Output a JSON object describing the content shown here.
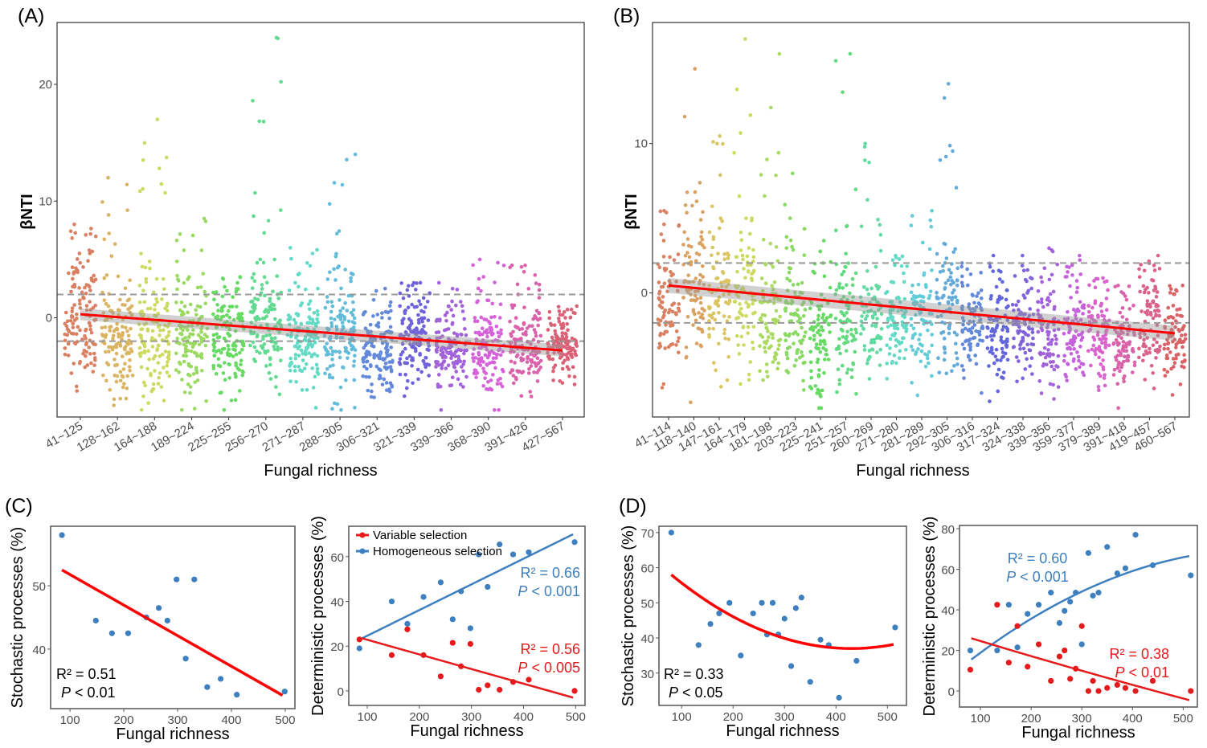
{
  "panel_labels": [
    "(A)",
    "(B)",
    "(C)",
    "(D)"
  ],
  "chart_data": [
    {
      "id": "A",
      "type": "scatter",
      "subtype": "jittered strip",
      "xlabel": "Fungal richness",
      "ylabel": "βNTI",
      "ylim": [
        -8.5,
        25.3
      ],
      "yticks": [
        0,
        10,
        20
      ],
      "reference_lines": [
        -2,
        2
      ],
      "categories": [
        "41~125",
        "128~162",
        "164~188",
        "189~224",
        "225~255",
        "256~270",
        "271~287",
        "288~305",
        "306~321",
        "321~339",
        "339~366",
        "368~390",
        "391~426",
        "427~567"
      ],
      "groups": [
        {
          "mean": 0,
          "sd": 2.6,
          "max": 8
        },
        {
          "mean": -2,
          "sd": 2.4,
          "max": 12
        },
        {
          "mean": -1,
          "sd": 2.6,
          "max": 17
        },
        {
          "mean": -2,
          "sd": 2.4,
          "max": 8.5
        },
        {
          "mean": -2,
          "sd": 2,
          "max": 3.5
        },
        {
          "mean": -1,
          "sd": 2.4,
          "max": 24
        },
        {
          "mean": -2,
          "sd": 2,
          "max": 6
        },
        {
          "mean": -1,
          "sd": 2.3,
          "max": 14
        },
        {
          "mean": -3,
          "sd": 1.7,
          "max": 2.5
        },
        {
          "mean": -2,
          "sd": 1.8,
          "max": 3
        },
        {
          "mean": -3,
          "sd": 1.7,
          "max": 3
        },
        {
          "mean": -3,
          "sd": 1.8,
          "max": 5
        },
        {
          "mean": -2.5,
          "sd": 1.8,
          "max": 4.5
        },
        {
          "mean": -2.5,
          "sd": 1.2,
          "max": 1
        }
      ],
      "points_per_group": 130,
      "regression": {
        "from": [
          1,
          0.3
        ],
        "to": [
          14,
          -2.8
        ],
        "color": "#ff0000"
      }
    },
    {
      "id": "B",
      "type": "scatter",
      "subtype": "jittered strip",
      "xlabel": "Fungal richness",
      "ylabel": "βNTI",
      "ylim": [
        -8.3,
        18.1
      ],
      "yticks": [
        0,
        10
      ],
      "reference_lines": [
        -2,
        2
      ],
      "categories": [
        "41~114",
        "118~140",
        "147~161",
        "164~179",
        "181~198",
        "203~223",
        "225~241",
        "251~257",
        "260~269",
        "271~280",
        "281~289",
        "292~305",
        "306~316",
        "317~324",
        "324~338",
        "339~356",
        "359~377",
        "379~389",
        "391~418",
        "419~457",
        "460~567"
      ],
      "groups": [
        {
          "mean": -1,
          "sd": 2.2,
          "max": 5.5
        },
        {
          "mean": 0.5,
          "sd": 2.6,
          "max": 15
        },
        {
          "mean": -1,
          "sd": 2.4,
          "max": 10.5
        },
        {
          "mean": -1,
          "sd": 2.4,
          "max": 17
        },
        {
          "mean": -1.5,
          "sd": 2.3,
          "max": 16
        },
        {
          "mean": -2,
          "sd": 2.3,
          "max": 8
        },
        {
          "mean": -3,
          "sd": 2,
          "max": 3.5
        },
        {
          "mean": -2,
          "sd": 2.2,
          "max": 16
        },
        {
          "mean": -1,
          "sd": 2.2,
          "max": 10
        },
        {
          "mean": -2,
          "sd": 1.8,
          "max": 2.5
        },
        {
          "mean": -2,
          "sd": 2,
          "max": 5.5
        },
        {
          "mean": -1,
          "sd": 2.3,
          "max": 14
        },
        {
          "mean": -2.5,
          "sd": 1.5,
          "max": 2
        },
        {
          "mean": -2.5,
          "sd": 1.6,
          "max": 2.5
        },
        {
          "mean": -2.5,
          "sd": 1.6,
          "max": 2.5
        },
        {
          "mean": -3,
          "sd": 1.7,
          "max": 3
        },
        {
          "mean": -2.5,
          "sd": 1.5,
          "max": 2.5
        },
        {
          "mean": -3,
          "sd": 1.6,
          "max": 1
        },
        {
          "mean": -3.5,
          "sd": 1.5,
          "max": 0.5
        },
        {
          "mean": -2,
          "sd": 1.7,
          "max": 2.5
        },
        {
          "mean": -3,
          "sd": 1.3,
          "max": 0.5
        }
      ],
      "points_per_group": 85,
      "regression": {
        "from": [
          1,
          0.5
        ],
        "to": [
          21,
          -2.7
        ],
        "color": "#ff0000"
      }
    },
    {
      "id": "C-left",
      "type": "scatter",
      "xlabel": "Fungal richness",
      "ylabel": "Stochastic processes (%)",
      "xlim": [
        64,
        518
      ],
      "ylim": [
        30.6,
        59.4
      ],
      "xticks": [
        100,
        200,
        300,
        400,
        500
      ],
      "yticks": [
        40,
        50
      ],
      "series": [
        {
          "name": "Stochastic",
          "color": "#3d7fbf",
          "points": [
            [
              85,
              58
            ],
            [
              148,
              44.5
            ],
            [
              178,
              42.5
            ],
            [
              208,
              42.5
            ],
            [
              242,
              45
            ],
            [
              265,
              46.5
            ],
            [
              281,
              44.5
            ],
            [
              298,
              51
            ],
            [
              315,
              38.5
            ],
            [
              331,
              51
            ],
            [
              355,
              34
            ],
            [
              380,
              35.3
            ],
            [
              410,
              32.8
            ],
            [
              499,
              33.3
            ]
          ],
          "fit": {
            "type": "linear",
            "from": [
              85,
              52.5
            ],
            "to": [
              495,
              32.7
            ],
            "color": "#ff0000"
          }
        }
      ],
      "annotations": [
        {
          "r2": "R² = 0.51",
          "p_italic": "P",
          "p_text": " < 0.01",
          "color": "#000000"
        }
      ]
    },
    {
      "id": "C-right",
      "type": "scatter",
      "xlabel": "Fungal richness",
      "ylabel": "Deterministic processes (%)",
      "xlim": [
        64.5,
        518
      ],
      "ylim": [
        -6.5,
        73.6
      ],
      "xticks": [
        100,
        200,
        300,
        400,
        500
      ],
      "yticks": [
        0,
        20,
        40,
        60
      ],
      "legend": {
        "position": "top-left",
        "entries": [
          "Variable selection",
          "Homogeneous selection"
        ]
      },
      "series": [
        {
          "name": "Homogeneous selection",
          "color": "#3d7fbf",
          "points": [
            [
              85,
              19
            ],
            [
              147,
              40
            ],
            [
              177,
              30
            ],
            [
              208,
              42
            ],
            [
              241,
              48.5
            ],
            [
              264,
              32
            ],
            [
              280,
              44.5
            ],
            [
              298,
              28
            ],
            [
              314,
              61
            ],
            [
              331,
              46.5
            ],
            [
              354,
              65.5
            ],
            [
              380,
              61
            ],
            [
              410,
              62
            ],
            [
              498,
              66.5
            ]
          ],
          "fit": {
            "type": "linear",
            "from": [
              90,
              23.5
            ],
            "to": [
              495,
              70
            ]
          }
        },
        {
          "name": "Variable selection",
          "color": "#e41a1c",
          "points": [
            [
              85,
              23
            ],
            [
              147,
              16
            ],
            [
              177,
              27.5
            ],
            [
              208,
              16
            ],
            [
              241,
              6.5
            ],
            [
              264,
              21.5
            ],
            [
              280,
              11
            ],
            [
              298,
              21
            ],
            [
              314,
              0.5
            ],
            [
              331,
              2.5
            ],
            [
              354,
              0.5
            ],
            [
              380,
              4
            ],
            [
              410,
              5
            ],
            [
              498,
              0
            ]
          ],
          "fit": {
            "type": "linear",
            "from": [
              90,
              23.5
            ],
            "to": [
              495,
              -3
            ]
          }
        }
      ],
      "annotations": [
        {
          "r2": "R² = 0.66",
          "p_italic": "P",
          "p_text": " < 0.001",
          "color": "#3d7fbf"
        },
        {
          "r2": "R² = 0.56",
          "p_italic": "P",
          "p_text": " < 0.005",
          "color": "#e41a1c"
        }
      ]
    },
    {
      "id": "D-left",
      "type": "scatter",
      "xlabel": "Fungal richness",
      "ylabel": "Stochastic processes (%)",
      "xlim": [
        56,
        537
      ],
      "ylim": [
        20.8,
        71.8
      ],
      "xticks": [
        100,
        200,
        300,
        400,
        500
      ],
      "yticks": [
        30,
        40,
        50,
        60,
        70
      ],
      "series": [
        {
          "name": "Stochastic",
          "color": "#3d7fbf",
          "points": [
            [
              80,
              70
            ],
            [
              133,
              38
            ],
            [
              156,
              44
            ],
            [
              173,
              47
            ],
            [
              193,
              50
            ],
            [
              215,
              35
            ],
            [
              239,
              47
            ],
            [
              256,
              50
            ],
            [
              266,
              41
            ],
            [
              277,
              50
            ],
            [
              288,
              41
            ],
            [
              300,
              45.5
            ],
            [
              313,
              32
            ],
            [
              322,
              48.5
            ],
            [
              333,
              51.5
            ],
            [
              350,
              27.5
            ],
            [
              370,
              39.5
            ],
            [
              386,
              38
            ],
            [
              406,
              23
            ],
            [
              440,
              33.5
            ],
            [
              515,
              43
            ]
          ],
          "fit": {
            "type": "quadratic",
            "coef": [
              0.0001714,
              -0.1474,
              68.69
            ],
            "range": [
              80,
              512
            ],
            "color": "#ff0000"
          }
        }
      ],
      "annotations": [
        {
          "r2": "R² = 0.33",
          "p_italic": "P",
          "p_text": " < 0.05",
          "color": "#000000"
        }
      ]
    },
    {
      "id": "D-right",
      "type": "scatter",
      "xlabel": "Fungal richness",
      "ylabel": "Deterministic processes (%)",
      "xlim": [
        58.7,
        528
      ],
      "ylim": [
        -7.9,
        81.6
      ],
      "xticks": [
        100,
        200,
        300,
        400,
        500
      ],
      "yticks": [
        0,
        20,
        40,
        60,
        80
      ],
      "series": [
        {
          "name": "Homogeneous selection",
          "color": "#3d7fbf",
          "points": [
            [
              80,
              20
            ],
            [
              133,
              20
            ],
            [
              156,
              42.5
            ],
            [
              173,
              21.5
            ],
            [
              193,
              38
            ],
            [
              215,
              42.5
            ],
            [
              239,
              48.5
            ],
            [
              256,
              33.5
            ],
            [
              266,
              39.5
            ],
            [
              277,
              44
            ],
            [
              288,
              48.5
            ],
            [
              300,
              23
            ],
            [
              313,
              68
            ],
            [
              322,
              47
            ],
            [
              333,
              48.5
            ],
            [
              350,
              71
            ],
            [
              370,
              58
            ],
            [
              386,
              60.5
            ],
            [
              406,
              77
            ],
            [
              440,
              62
            ],
            [
              515,
              57
            ]
          ],
          "fit": {
            "type": "quadratic",
            "coef": [
              -0.0001656,
              0.217,
              -1.19
            ],
            "range": [
              82,
              512
            ]
          }
        },
        {
          "name": "Variable selection",
          "color": "#e41a1c",
          "points": [
            [
              80,
              10.5
            ],
            [
              133,
              42.5
            ],
            [
              156,
              14
            ],
            [
              173,
              32
            ],
            [
              193,
              12
            ],
            [
              215,
              23
            ],
            [
              239,
              5
            ],
            [
              256,
              17
            ],
            [
              266,
              20
            ],
            [
              277,
              6
            ],
            [
              288,
              11
            ],
            [
              300,
              32
            ],
            [
              313,
              0
            ],
            [
              322,
              5
            ],
            [
              333,
              0
            ],
            [
              350,
              1.5
            ],
            [
              370,
              3
            ],
            [
              386,
              1.5
            ],
            [
              406,
              0
            ],
            [
              440,
              5
            ],
            [
              515,
              0
            ]
          ],
          "fit": {
            "type": "quadratic",
            "coef": [
              1.16e-05,
              -0.0778,
              32.3
            ],
            "range": [
              82,
              512
            ]
          }
        }
      ],
      "annotations": [
        {
          "r2": "R² = 0.60",
          "p_italic": "P",
          "p_text": " < 0.001",
          "color": "#3d7fbf"
        },
        {
          "r2": "R² = 0.38",
          "p_italic": "P",
          "p_text": " < 0.01",
          "color": "#e41a1c"
        }
      ]
    }
  ]
}
